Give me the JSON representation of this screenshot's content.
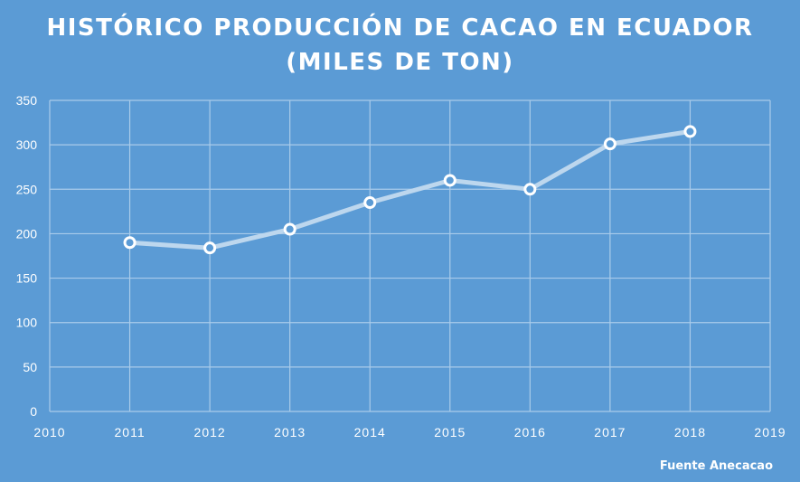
{
  "title_line1": "HISTÓRICO PRODUCCIÓN DE CACAO EN ECUADOR",
  "title_line2": "(MILES DE TON)",
  "source": "Fuente Anecacao",
  "colors": {
    "background": "#5b9bd5",
    "grid": "#a9cbea",
    "line": "#bdd7ee",
    "marker_fill": "#5b9bd5",
    "marker_stroke": "#ffffff",
    "text": "#ffffff"
  },
  "chart_data": {
    "type": "line",
    "title": "HISTÓRICO PRODUCCIÓN DE CACAO EN ECUADOR (MILES DE TON)",
    "xlabel": "",
    "ylabel": "",
    "xlim": [
      2010,
      2019
    ],
    "ylim": [
      0,
      350
    ],
    "x_ticks": [
      2010,
      2011,
      2012,
      2013,
      2014,
      2015,
      2016,
      2017,
      2018,
      2019
    ],
    "y_ticks": [
      0,
      50,
      100,
      150,
      200,
      250,
      300,
      350
    ],
    "grid": true,
    "legend": "none",
    "series": [
      {
        "x": [
          2011,
          2012,
          2013,
          2014,
          2015,
          2016,
          2017,
          2018
        ],
        "values": [
          190,
          184,
          205,
          235,
          260,
          250,
          301,
          315
        ]
      }
    ]
  }
}
